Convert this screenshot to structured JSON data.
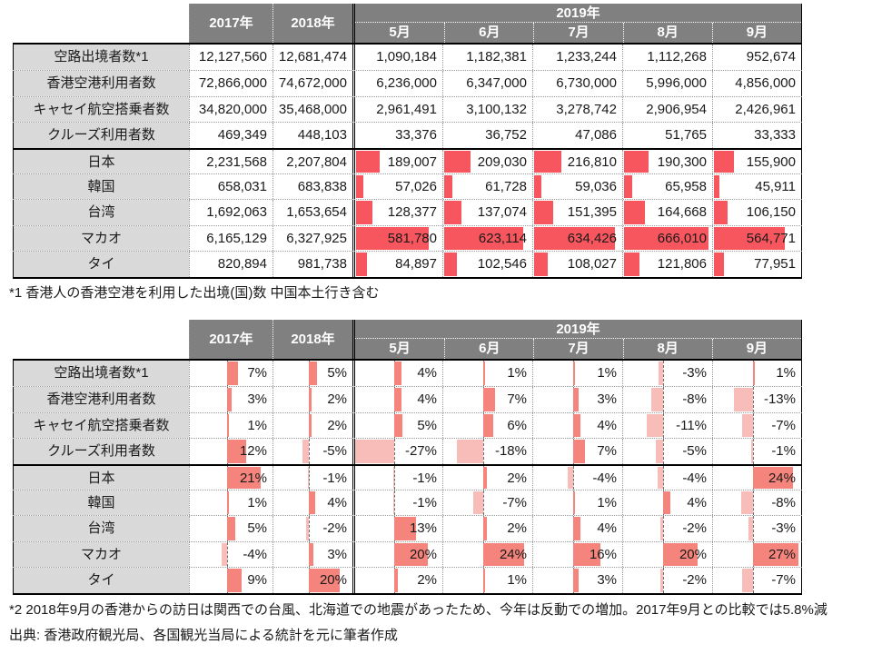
{
  "colors": {
    "header_bg": "#808080",
    "header_text": "#ffffff",
    "label_bg": "#D9D9D9",
    "bar_red": "#F8565E",
    "bar_positive": "#F5857C",
    "bar_negative": "#F8BDB8"
  },
  "tables": [
    {
      "id": "volumes",
      "header": {
        "year_cols": [
          "2017年",
          "2018年"
        ],
        "group": "2019年",
        "months": [
          "5月",
          "6月",
          "7月",
          "8月",
          "9月"
        ]
      },
      "bar_style": "absolute",
      "bar_max": 666010,
      "rows": [
        {
          "label": "空路出境者数*1",
          "display": [
            "12,127,560",
            "12,681,474",
            "1,090,184",
            "1,182,381",
            "1,233,244",
            "1,112,268",
            "952,674"
          ]
        },
        {
          "label": "香港空港利用者数",
          "display": [
            "72,866,000",
            "74,672,000",
            "6,236,000",
            "6,347,000",
            "6,730,000",
            "5,996,000",
            "4,856,000"
          ]
        },
        {
          "label": "キャセイ航空搭乗者数",
          "display": [
            "34,820,000",
            "35,468,000",
            "2,961,491",
            "3,100,132",
            "3,278,742",
            "2,906,954",
            "2,426,961"
          ]
        },
        {
          "label": "クルーズ利用者数",
          "display": [
            "469,349",
            "448,103",
            "33,376",
            "36,752",
            "47,086",
            "51,765",
            "33,333"
          ]
        },
        {
          "label": "日本",
          "group_start": true,
          "display": [
            "2,231,568",
            "2,207,804",
            "189,007",
            "209,030",
            "216,810",
            "190,300",
            "155,900"
          ],
          "bars": [
            null,
            null,
            189007,
            209030,
            216810,
            190300,
            155900
          ]
        },
        {
          "label": "韓国",
          "display": [
            "658,031",
            "683,838",
            "57,026",
            "61,728",
            "59,036",
            "65,958",
            "45,911"
          ],
          "bars": [
            null,
            null,
            57026,
            61728,
            59036,
            65958,
            45911
          ]
        },
        {
          "label": "台湾",
          "display": [
            "1,692,063",
            "1,653,654",
            "128,377",
            "137,074",
            "151,395",
            "164,668",
            "106,150"
          ],
          "bars": [
            null,
            null,
            128377,
            137074,
            151395,
            164668,
            106150
          ]
        },
        {
          "label": "マカオ",
          "display": [
            "6,165,129",
            "6,327,925",
            "581,780",
            "623,114",
            "634,426",
            "666,010",
            "564,771"
          ],
          "bars": [
            null,
            null,
            581780,
            623114,
            634426,
            666010,
            564771
          ]
        },
        {
          "label": "タイ",
          "display": [
            "820,894",
            "981,738",
            "84,897",
            "102,546",
            "108,027",
            "121,806",
            "77,951"
          ],
          "bars": [
            null,
            null,
            84897,
            102546,
            108027,
            121806,
            77951
          ]
        }
      ]
    },
    {
      "id": "yoy-percent",
      "header": {
        "year_cols": [
          "2017年",
          "2018年"
        ],
        "group": "2019年",
        "months": [
          "5月",
          "6月",
          "7月",
          "8月",
          "9月"
        ]
      },
      "bar_style": "diverging",
      "bar_range": 27,
      "rows": [
        {
          "label": "空路出境者数*1",
          "display": [
            "7%",
            "5%",
            "4%",
            "1%",
            "1%",
            "-3%",
            "1%"
          ],
          "values": [
            7,
            5,
            4,
            1,
            1,
            -3,
            1
          ]
        },
        {
          "label": "香港空港利用者数",
          "display": [
            "3%",
            "2%",
            "4%",
            "7%",
            "3%",
            "-8%",
            "-13%"
          ],
          "values": [
            3,
            2,
            4,
            7,
            3,
            -8,
            -13
          ]
        },
        {
          "label": "キャセイ航空搭乗者数",
          "display": [
            "1%",
            "2%",
            "5%",
            "6%",
            "4%",
            "-11%",
            "-7%"
          ],
          "values": [
            1,
            2,
            5,
            6,
            4,
            -11,
            -7
          ]
        },
        {
          "label": "クルーズ利用者数",
          "display": [
            "12%",
            "-5%",
            "-27%",
            "-18%",
            "7%",
            "-5%",
            "-1%"
          ],
          "values": [
            12,
            -5,
            -27,
            -18,
            7,
            -5,
            -1
          ]
        },
        {
          "label": "日本",
          "group_start": true,
          "display": [
            "21%",
            "-1%",
            "-1%",
            "2%",
            "-4%",
            "-4%",
            "24%"
          ],
          "values": [
            21,
            -1,
            -1,
            2,
            -4,
            -4,
            24
          ]
        },
        {
          "label": "韓国",
          "display": [
            "1%",
            "4%",
            "-1%",
            "-7%",
            "1%",
            "4%",
            "-8%"
          ],
          "values": [
            1,
            4,
            -1,
            -7,
            1,
            4,
            -8
          ]
        },
        {
          "label": "台湾",
          "display": [
            "5%",
            "-2%",
            "13%",
            "2%",
            "4%",
            "-2%",
            "-3%"
          ],
          "values": [
            5,
            -2,
            13,
            2,
            4,
            -2,
            -3
          ]
        },
        {
          "label": "マカオ",
          "display": [
            "-4%",
            "3%",
            "20%",
            "24%",
            "16%",
            "20%",
            "27%"
          ],
          "values": [
            -4,
            3,
            20,
            24,
            16,
            20,
            27
          ]
        },
        {
          "label": "タイ",
          "display": [
            "9%",
            "20%",
            "2%",
            "1%",
            "3%",
            "-2%",
            "-7%"
          ],
          "values": [
            9,
            20,
            2,
            1,
            3,
            -2,
            -7
          ]
        }
      ]
    }
  ],
  "footnote1": "*1 香港人の香港空港を利用した出境(国)数  中国本土行き含む",
  "footnote2": "*2 2018年9月の香港からの訪日は関西での台風、北海道での地震があったため、今年は反動での増加。2017年9月との比較では5.8%減",
  "source": "出典: 香港政府観光局、各国観光当局による統計を元に筆者作成",
  "chart_data": [
    {
      "type": "table",
      "columns": [
        "",
        "2017年",
        "2018年",
        "2019年5月",
        "2019年6月",
        "2019年7月",
        "2019年8月",
        "2019年9月"
      ],
      "rows": [
        [
          "空路出境者数*1",
          12127560,
          12681474,
          1090184,
          1182381,
          1233244,
          1112268,
          952674
        ],
        [
          "香港空港利用者数",
          72866000,
          74672000,
          6236000,
          6347000,
          6730000,
          5996000,
          4856000
        ],
        [
          "キャセイ航空搭乗者数",
          34820000,
          35468000,
          2961491,
          3100132,
          3278742,
          2906954,
          2426961
        ],
        [
          "クルーズ利用者数",
          469349,
          448103,
          33376,
          36752,
          47086,
          51765,
          33333
        ],
        [
          "日本",
          2231568,
          2207804,
          189007,
          209030,
          216810,
          190300,
          155900
        ],
        [
          "韓国",
          658031,
          683838,
          57026,
          61728,
          59036,
          65958,
          45911
        ],
        [
          "台湾",
          1692063,
          1653654,
          128377,
          137074,
          151395,
          164668,
          106150
        ],
        [
          "マカオ",
          6165129,
          6327925,
          581780,
          623114,
          634426,
          666010,
          564771
        ],
        [
          "タイ",
          820894,
          981738,
          84897,
          102546,
          108027,
          121806,
          77951
        ]
      ],
      "layout_hints": "red in-cell data bars on the five country rows for the 2019 month columns, scaled to max 666,010"
    },
    {
      "type": "table",
      "columns": [
        "",
        "2017年",
        "2018年",
        "2019年5月",
        "2019年6月",
        "2019年7月",
        "2019年8月",
        "2019年9月"
      ],
      "unit": "%",
      "rows": [
        [
          "空路出境者数*1",
          7,
          5,
          4,
          1,
          1,
          -3,
          1
        ],
        [
          "香港空港利用者数",
          3,
          2,
          4,
          7,
          3,
          -8,
          -13
        ],
        [
          "キャセイ航空搭乗者数",
          1,
          2,
          5,
          6,
          4,
          -11,
          -7
        ],
        [
          "クルーズ利用者数",
          12,
          -5,
          -27,
          -18,
          7,
          -5,
          -1
        ],
        [
          "日本",
          21,
          -1,
          -1,
          2,
          -4,
          -4,
          24
        ],
        [
          "韓国",
          1,
          4,
          -1,
          -7,
          1,
          4,
          -8
        ],
        [
          "台湾",
          5,
          -2,
          13,
          2,
          4,
          -2,
          -3
        ],
        [
          "マカオ",
          -4,
          3,
          20,
          24,
          16,
          20,
          27
        ],
        [
          "タイ",
          9,
          20,
          2,
          1,
          3,
          -2,
          -7
        ]
      ],
      "layout_hints": "diverging in-cell data bars in every cell: salmon bars right of dashed zero axis (at 45% of cell) for positive values, light pink bars left of axis for negative; range ±27%"
    }
  ]
}
